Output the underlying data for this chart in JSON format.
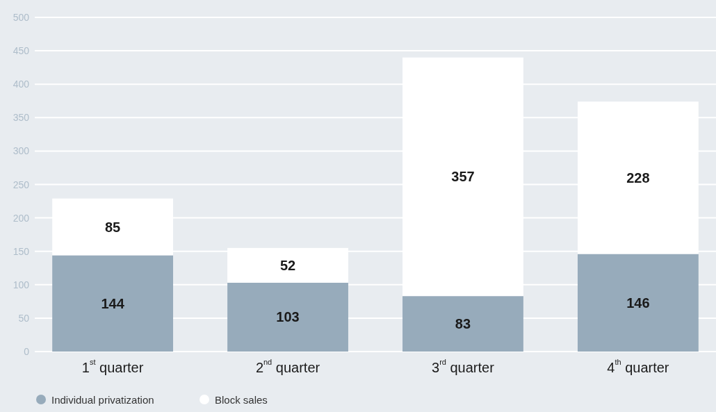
{
  "chart_data": {
    "type": "bar",
    "stacked": true,
    "categories": [
      "1$^{st}$ quarter",
      "2$^{nd}$ quarter",
      "3$^{rd}$ quarter",
      "4$^{th}$ quarter"
    ],
    "series": [
      {
        "name": "Individual privatization",
        "color": "#97abbb",
        "values": [
          144,
          103,
          83,
          146
        ]
      },
      {
        "name": "Block sales",
        "color": "#ffffff",
        "values": [
          85,
          52,
          357,
          228
        ]
      }
    ],
    "ylim": [
      0,
      500
    ],
    "yticks": [
      0,
      50,
      100,
      150,
      200,
      250,
      300,
      350,
      400,
      450,
      500
    ],
    "grid": "y",
    "legend": "bottom left",
    "data_labels": true
  }
}
